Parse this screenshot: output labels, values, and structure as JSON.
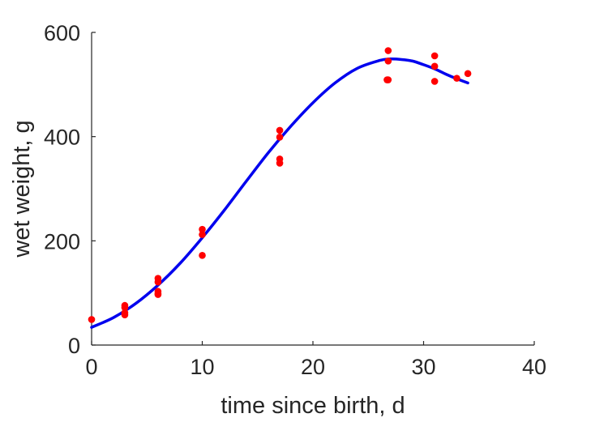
{
  "chart_data": {
    "type": "scatter",
    "xlabel": "time since birth, d",
    "ylabel": "wet weight, g",
    "xlim": [
      0,
      40
    ],
    "ylim": [
      0,
      600
    ],
    "xticks": [
      "0",
      "10",
      "20",
      "30",
      "40"
    ],
    "yticks": [
      "0",
      "200",
      "400",
      "600"
    ],
    "grid": false,
    "colors": {
      "points": "#ff0000",
      "fit": "#0000ee"
    },
    "series": [
      {
        "kind": "points",
        "x": [
          0,
          3,
          3,
          3,
          3,
          6,
          6,
          6,
          6,
          6,
          10,
          10,
          10,
          17,
          17,
          17,
          17,
          26.7,
          26.8,
          26.8,
          26.8,
          31,
          31,
          31,
          33,
          34
        ],
        "y": [
          49,
          76,
          72,
          62,
          58,
          128,
          121,
          103,
          97,
          99,
          222,
          212,
          172,
          412,
          399,
          357,
          349,
          509,
          565,
          545,
          509,
          555,
          535,
          506,
          512,
          521
        ]
      },
      {
        "kind": "line",
        "x": [
          0,
          2,
          4,
          6,
          8,
          10,
          12,
          14,
          16,
          18,
          20,
          22,
          24,
          26,
          27,
          28,
          29,
          30,
          31,
          32,
          33,
          34
        ],
        "y": [
          34,
          53,
          80,
          115,
          157,
          206,
          259,
          315,
          370,
          420,
          465,
          503,
          531,
          546,
          549,
          548,
          545,
          538,
          530,
          520,
          511,
          503
        ]
      }
    ]
  }
}
